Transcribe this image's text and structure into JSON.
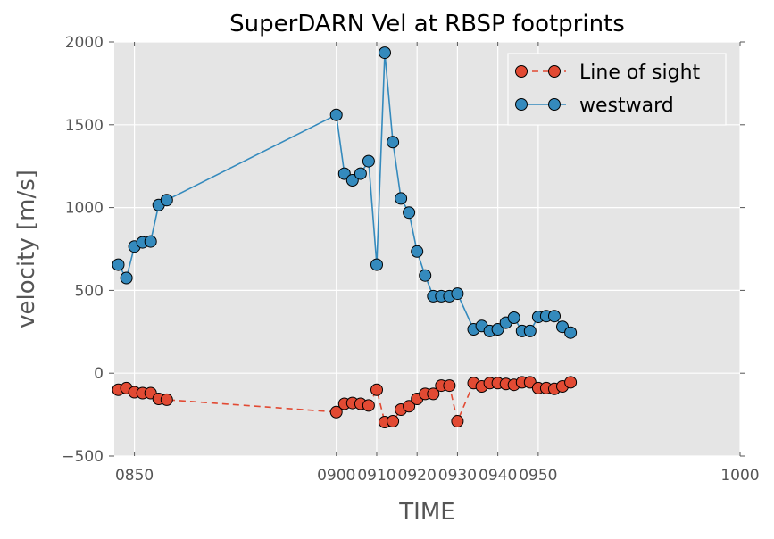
{
  "chart_data": {
    "type": "line",
    "title": "SuperDARN Vel at RBSP footprints",
    "xlabel": "TIME",
    "ylabel": "velocity [m/s]",
    "xlim": [
      845,
      1000
    ],
    "ylim": [
      -500,
      2000
    ],
    "xticks": [
      850,
      900,
      910,
      920,
      930,
      940,
      950,
      1000
    ],
    "xtick_labels": [
      "0850",
      "0900",
      "0910",
      "0920",
      "0930",
      "0940",
      "0950",
      "1000"
    ],
    "yticks": [
      -500,
      0,
      500,
      1000,
      1500,
      2000
    ],
    "ytick_labels": [
      "−500",
      "0",
      "500",
      "1000",
      "1500",
      "2000"
    ],
    "grid": true,
    "legend_position": "top-right",
    "series": [
      {
        "name": "Line of sight",
        "color": "#e24a33",
        "line_style": "dashed",
        "marker": "circle",
        "points": [
          [
            846,
            -100
          ],
          [
            848,
            -90
          ],
          [
            850,
            -115
          ],
          [
            852,
            -120
          ],
          [
            854,
            -120
          ],
          [
            856,
            -155
          ],
          [
            858,
            -160
          ],
          [
            900,
            -235
          ],
          [
            902,
            -185
          ],
          [
            904,
            -180
          ],
          [
            906,
            -185
          ],
          [
            908,
            -195
          ],
          [
            910,
            -100
          ],
          [
            912,
            -295
          ],
          [
            914,
            -290
          ],
          [
            916,
            -220
          ],
          [
            918,
            -200
          ],
          [
            920,
            -155
          ],
          [
            922,
            -125
          ],
          [
            924,
            -125
          ],
          [
            926,
            -75
          ],
          [
            928,
            -75
          ],
          [
            930,
            -290
          ],
          [
            934,
            -60
          ],
          [
            936,
            -80
          ],
          [
            938,
            -60
          ],
          [
            940,
            -60
          ],
          [
            942,
            -65
          ],
          [
            944,
            -70
          ],
          [
            946,
            -55
          ],
          [
            948,
            -55
          ],
          [
            950,
            -90
          ],
          [
            952,
            -90
          ],
          [
            954,
            -95
          ],
          [
            956,
            -80
          ],
          [
            958,
            -55
          ]
        ]
      },
      {
        "name": "westward",
        "color": "#348abd",
        "line_style": "solid",
        "marker": "circle",
        "points": [
          [
            846,
            655
          ],
          [
            848,
            575
          ],
          [
            850,
            765
          ],
          [
            852,
            790
          ],
          [
            854,
            795
          ],
          [
            856,
            1015
          ],
          [
            858,
            1045
          ],
          [
            900,
            1560
          ],
          [
            902,
            1205
          ],
          [
            904,
            1165
          ],
          [
            906,
            1205
          ],
          [
            908,
            1280
          ],
          [
            910,
            655
          ],
          [
            912,
            1935
          ],
          [
            914,
            1395
          ],
          [
            916,
            1055
          ],
          [
            918,
            970
          ],
          [
            920,
            735
          ],
          [
            922,
            590
          ],
          [
            924,
            465
          ],
          [
            926,
            465
          ],
          [
            928,
            465
          ],
          [
            930,
            480
          ],
          [
            934,
            265
          ],
          [
            936,
            285
          ],
          [
            938,
            255
          ],
          [
            940,
            265
          ],
          [
            942,
            305
          ],
          [
            944,
            335
          ],
          [
            946,
            255
          ],
          [
            948,
            255
          ],
          [
            950,
            340
          ],
          [
            952,
            345
          ],
          [
            954,
            345
          ],
          [
            956,
            280
          ],
          [
            958,
            245
          ]
        ]
      }
    ]
  }
}
